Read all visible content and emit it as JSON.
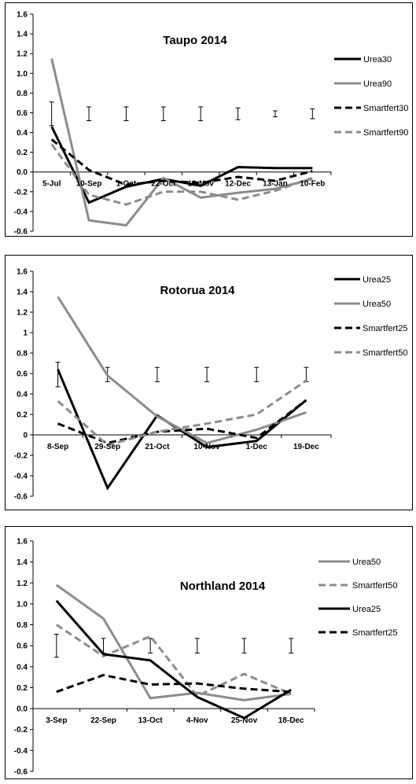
{
  "chart_data": [
    {
      "type": "line",
      "title": "Taupo 2014",
      "xlabel": "",
      "ylabel": "",
      "ylim": [
        -0.6,
        1.6
      ],
      "yticks": [
        "1.6",
        "1.4",
        "1.2",
        "1.0",
        "0.8",
        "0.6",
        "0.4",
        "0.2",
        "0.0",
        "-0.2",
        "-0.4",
        "-0.6"
      ],
      "categories": [
        "5-Jul",
        "10-Sep",
        "1-Oct",
        "22-Oct",
        "13-Nov",
        "12-Dec",
        "13-Jan",
        "10-Feb"
      ],
      "series": [
        {
          "name": "Urea30",
          "color": "#000000",
          "dash": "solid",
          "values": [
            0.46,
            -0.31,
            -0.15,
            -0.07,
            -0.14,
            0.05,
            0.04,
            0.04
          ]
        },
        {
          "name": "Urea90",
          "color": "#8c8c8c",
          "dash": "solid",
          "values": [
            1.15,
            -0.49,
            -0.54,
            -0.06,
            -0.26,
            -0.21,
            -0.17,
            -0.07
          ]
        },
        {
          "name": "Smartfert30",
          "color": "#000000",
          "dash": "dashed",
          "values": [
            0.33,
            0.02,
            -0.13,
            -0.09,
            -0.11,
            -0.05,
            -0.09,
            0.01
          ]
        },
        {
          "name": "Smartfert90",
          "color": "#8c8c8c",
          "dash": "dashed",
          "values": [
            0.28,
            -0.23,
            -0.33,
            -0.2,
            -0.2,
            -0.28,
            -0.19,
            -0.06
          ]
        }
      ],
      "error_bars": {
        "center": [
          0.59,
          0.59,
          0.59,
          0.59,
          0.59,
          0.59,
          0.59,
          0.59
        ],
        "half": [
          0.12,
          0.07,
          0.07,
          0.07,
          0.07,
          0.06,
          0.03,
          0.05
        ]
      },
      "grid": false,
      "legend": "right"
    },
    {
      "type": "line",
      "title": "Rotorua 2014",
      "xlabel": "",
      "ylabel": "",
      "ylim": [
        -0.6,
        1.6
      ],
      "yticks": [
        "1.6",
        "1.4",
        "1.2",
        "1",
        "0.8",
        "0.6",
        "0.4",
        "0.2",
        "0",
        "-0.2",
        "-0.4",
        "-0.6"
      ],
      "categories": [
        "8-Sep",
        "29-Sep",
        "21-Oct",
        "10-Nov",
        "1-Dec",
        "19-Dec"
      ],
      "series": [
        {
          "name": "Urea25",
          "color": "#000000",
          "dash": "solid",
          "values": [
            0.64,
            -0.52,
            0.19,
            -0.12,
            -0.06,
            0.34
          ]
        },
        {
          "name": "Urea50",
          "color": "#8c8c8c",
          "dash": "solid",
          "values": [
            1.35,
            0.58,
            0.18,
            -0.08,
            0.05,
            0.22
          ]
        },
        {
          "name": "Smartfert25",
          "color": "#000000",
          "dash": "dashed",
          "values": [
            0.11,
            -0.08,
            0.03,
            0.06,
            -0.03,
            0.34
          ]
        },
        {
          "name": "Smartfert50",
          "color": "#8c8c8c",
          "dash": "dashed",
          "values": [
            0.33,
            -0.1,
            0.03,
            0.11,
            0.2,
            0.53
          ]
        }
      ],
      "error_bars": {
        "center": [
          0.59,
          0.59,
          0.59,
          0.59,
          0.59,
          0.59
        ],
        "half": [
          0.12,
          0.07,
          0.07,
          0.07,
          0.07,
          0.07
        ]
      },
      "grid": false,
      "legend": "right"
    },
    {
      "type": "line",
      "title": "Northland 2014",
      "xlabel": "",
      "ylabel": "",
      "ylim": [
        -0.6,
        1.6
      ],
      "yticks": [
        "1.6",
        "1.4",
        "1.2",
        "1.0",
        "0.8",
        "0.6",
        "0.4",
        "0.2",
        "0.0",
        "-0.2",
        "-0.4",
        "-0.6"
      ],
      "categories": [
        "3-Sep",
        "22-Sep",
        "13-Oct",
        "4-Nov",
        "25-Nov",
        "18-Dec"
      ],
      "series": [
        {
          "name": "Urea50",
          "color": "#8c8c8c",
          "dash": "solid",
          "values": [
            1.18,
            0.86,
            0.1,
            0.15,
            0.08,
            0.14
          ]
        },
        {
          "name": "Smartfert50",
          "color": "#8c8c8c",
          "dash": "dashed",
          "values": [
            0.8,
            0.5,
            0.69,
            0.12,
            0.33,
            0.14
          ]
        },
        {
          "name": "Urea25",
          "color": "#000000",
          "dash": "solid",
          "values": [
            1.03,
            0.52,
            0.46,
            0.11,
            -0.09,
            0.18
          ]
        },
        {
          "name": "Smartfert25",
          "color": "#000000",
          "dash": "dashed",
          "values": [
            0.16,
            0.32,
            0.23,
            0.24,
            0.19,
            0.16
          ]
        }
      ],
      "error_bars": {
        "center": [
          0.6,
          0.6,
          0.6,
          0.6,
          0.6,
          0.6
        ],
        "half": [
          0.11,
          0.07,
          0.07,
          0.07,
          0.07,
          0.07
        ]
      },
      "grid": false,
      "legend": "right"
    }
  ]
}
